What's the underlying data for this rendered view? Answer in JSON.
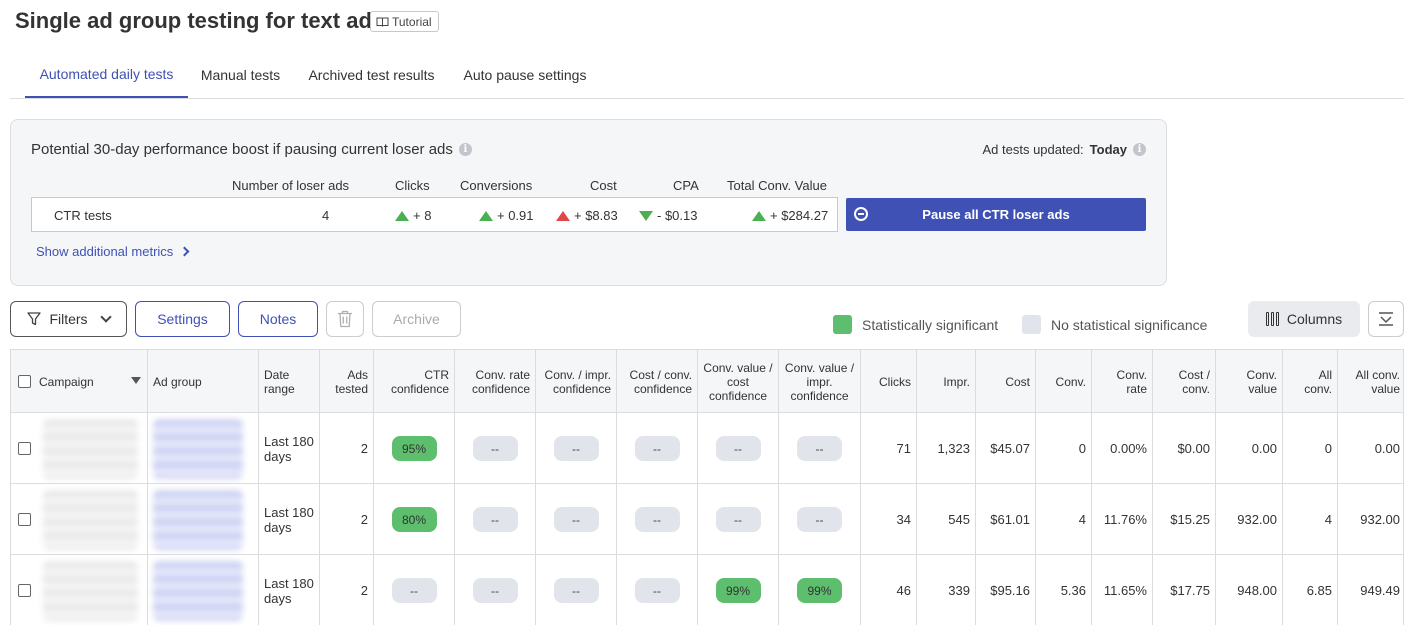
{
  "page": {
    "title": "Single ad group testing for text ads",
    "tutorial_label": "Tutorial"
  },
  "tabs": [
    {
      "label": "Automated daily tests",
      "active": true
    },
    {
      "label": "Manual tests",
      "active": false
    },
    {
      "label": "Archived test results",
      "active": false
    },
    {
      "label": "Auto pause settings",
      "active": false
    }
  ],
  "boost": {
    "title": "Potential 30-day performance boost if pausing current loser ads",
    "updated_label": "Ad tests updated:",
    "updated_value": "Today",
    "headers": {
      "loser_ads": "Number of loser ads",
      "clicks": "Clicks",
      "conversions": "Conversions",
      "cost": "Cost",
      "cpa": "CPA",
      "total_conv_value": "Total Conv. Value"
    },
    "row": {
      "label": "CTR tests",
      "loser_ads": "4",
      "clicks": "+ 8",
      "conversions": "+ 0.91",
      "cost": "+ $8.83",
      "cpa": "- $0.13",
      "total_conv_value": "+ $284.27"
    },
    "pause_button": "Pause all CTR loser ads",
    "show_more": "Show additional metrics"
  },
  "toolbar": {
    "filters": "Filters",
    "settings": "Settings",
    "notes": "Notes",
    "archive": "Archive",
    "legend_significant": "Statistically significant",
    "legend_not_significant": "No statistical significance",
    "columns": "Columns"
  },
  "colors": {
    "accent": "#3f51b5",
    "significant": "#5dbe6d",
    "not_significant": "#e1e4ea",
    "up_good": "#4caf50",
    "up_bad": "#e04848"
  },
  "table": {
    "headers": {
      "campaign": "Campaign",
      "ad_group": "Ad group",
      "date_range": "Date range",
      "ads_tested": "Ads tested",
      "ctr_conf": "CTR confidence",
      "conv_rate_conf": "Conv. rate confidence",
      "conv_impr_conf": "Conv. / impr. confidence",
      "cost_conv_conf": "Cost / conv. confidence",
      "convval_cost_conf": "Conv. value / cost confidence",
      "convval_impr_conf": "Conv. value / impr. confidence",
      "clicks": "Clicks",
      "impr": "Impr.",
      "cost": "Cost",
      "conv": "Conv.",
      "conv_rate": "Conv. rate",
      "cost_conv": "Cost / conv.",
      "conv_value": "Conv. value",
      "all_conv": "All conv.",
      "all_conv_value": "All conv. value"
    },
    "rows": [
      {
        "date_range": "Last 180 days",
        "ads_tested": "2",
        "ctr": "95%",
        "ctr_sig": true,
        "conv_rate": "--",
        "conv_rate_sig": false,
        "conv_impr": "--",
        "conv_impr_sig": false,
        "cost_conv_c": "--",
        "cost_conv_c_sig": false,
        "cv_cost": "--",
        "cv_cost_sig": false,
        "cv_impr": "--",
        "cv_impr_sig": false,
        "clicks": "71",
        "impr": "1,323",
        "cost": "$45.07",
        "conv": "0",
        "conv_rate_v": "0.00%",
        "cost_conv": "$0.00",
        "conv_value": "0.00",
        "all_conv": "0",
        "all_conv_value": "0.00"
      },
      {
        "date_range": "Last 180 days",
        "ads_tested": "2",
        "ctr": "80%",
        "ctr_sig": true,
        "conv_rate": "--",
        "conv_rate_sig": false,
        "conv_impr": "--",
        "conv_impr_sig": false,
        "cost_conv_c": "--",
        "cost_conv_c_sig": false,
        "cv_cost": "--",
        "cv_cost_sig": false,
        "cv_impr": "--",
        "cv_impr_sig": false,
        "clicks": "34",
        "impr": "545",
        "cost": "$61.01",
        "conv": "4",
        "conv_rate_v": "11.76%",
        "cost_conv": "$15.25",
        "conv_value": "932.00",
        "all_conv": "4",
        "all_conv_value": "932.00"
      },
      {
        "date_range": "Last 180 days",
        "ads_tested": "2",
        "ctr": "--",
        "ctr_sig": false,
        "conv_rate": "--",
        "conv_rate_sig": false,
        "conv_impr": "--",
        "conv_impr_sig": false,
        "cost_conv_c": "--",
        "cost_conv_c_sig": false,
        "cv_cost": "99%",
        "cv_cost_sig": true,
        "cv_impr": "99%",
        "cv_impr_sig": true,
        "clicks": "46",
        "impr": "339",
        "cost": "$95.16",
        "conv": "5.36",
        "conv_rate_v": "11.65%",
        "cost_conv": "$17.75",
        "conv_value": "948.00",
        "all_conv": "6.85",
        "all_conv_value": "949.49"
      }
    ]
  }
}
